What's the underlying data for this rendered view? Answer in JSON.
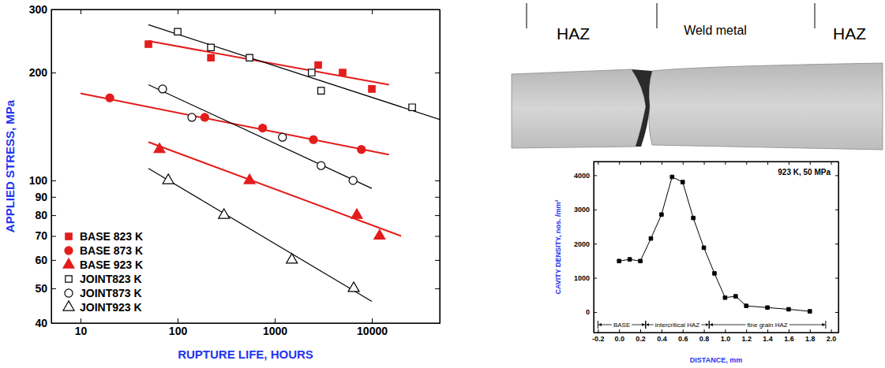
{
  "chart_data": [
    {
      "type": "scatter",
      "log": true,
      "grid": false,
      "legend": "lower left",
      "x_label": "RUPTURE LIFE, HOURS",
      "y_label": "APPLIED STRESS, MPa",
      "xlim": [
        5,
        50000
      ],
      "xticks": [
        10,
        100,
        1000,
        10000
      ],
      "ylim": [
        40,
        300
      ],
      "yticks": [
        40,
        50,
        60,
        70,
        80,
        90,
        100,
        200,
        300
      ],
      "series": [
        {
          "name": "BASE 823 K",
          "color": "#e41c1c",
          "marker": "square",
          "x": [
            50,
            220,
            2800,
            5000,
            10000
          ],
          "values": [
            240,
            220,
            210,
            200,
            180
          ],
          "fit_x": [
            50,
            15000
          ],
          "fit_values": [
            245,
            185
          ]
        },
        {
          "name": "BASE 873 K",
          "color": "#e41c1c",
          "marker": "circle",
          "x": [
            20,
            190,
            750,
            2500,
            7800
          ],
          "values": [
            170,
            150,
            140,
            130,
            122
          ],
          "fit_x": [
            10,
            15000
          ],
          "fit_values": [
            175,
            118
          ]
        },
        {
          "name": "BASE 923 K",
          "color": "#e41c1c",
          "marker": "triangle",
          "x": [
            65,
            550,
            7000,
            12000
          ],
          "values": [
            122,
            100,
            80,
            70
          ],
          "fit_x": [
            50,
            20000
          ],
          "fit_values": [
            128,
            70
          ]
        },
        {
          "name": "JOINT823 K",
          "color": "#000000",
          "marker": "open-square",
          "x": [
            100,
            220,
            550,
            2400,
            3000,
            26000
          ],
          "values": [
            260,
            235,
            220,
            200,
            178,
            160
          ],
          "fit_x": [
            50,
            50000
          ],
          "fit_values": [
            272,
            148
          ]
        },
        {
          "name": "JOINT873 K",
          "color": "#000000",
          "marker": "open-circle",
          "x": [
            70,
            140,
            1200,
            3000,
            6400
          ],
          "values": [
            180,
            150,
            132,
            110,
            100
          ],
          "fit_x": [
            50,
            10000
          ],
          "fit_values": [
            185,
            95
          ]
        },
        {
          "name": "JOINT923 K",
          "color": "#000000",
          "marker": "open-triangle",
          "x": [
            80,
            300,
            1500,
            6500
          ],
          "values": [
            100,
            80,
            60,
            50
          ],
          "fit_x": [
            50,
            10000
          ],
          "fit_values": [
            108,
            46
          ]
        }
      ]
    },
    {
      "type": "line",
      "grid": false,
      "marker": "square",
      "color": "#000000",
      "annotation": "923 K, 50 MPa",
      "x_label": "DISTANCE, mm",
      "y_label": "CAVITY DENSITY, nos. /mm²",
      "xlim": [
        -0.24,
        2.07
      ],
      "xticks": [
        -0.2,
        {
          "value": 0,
          "label": "0.0"
        },
        0.2,
        0.4,
        0.6,
        0.8,
        {
          "value": 1,
          "label": "1.0"
        },
        1.2,
        1.4,
        1.6,
        1.8,
        {
          "value": 2,
          "label": "2.0"
        }
      ],
      "ylim": [
        -600,
        4400
      ],
      "yticks": [
        0,
        1000,
        2000,
        3000,
        4000
      ],
      "x": [
        0.0,
        0.1,
        0.2,
        0.3,
        0.4,
        0.5,
        0.6,
        0.7,
        0.8,
        0.9,
        1.0,
        1.1,
        1.2,
        1.4,
        1.6,
        1.8
      ],
      "values": [
        1490,
        1540,
        1490,
        2150,
        2850,
        3950,
        3800,
        2750,
        1880,
        1130,
        420,
        460,
        180,
        130,
        80,
        20
      ],
      "regions": [
        {
          "label": "BASE",
          "from": -0.2,
          "to": 0.25
        },
        {
          "label": "intercritical HAZ",
          "from": 0.25,
          "to": 0.85
        },
        {
          "label": "fine grain HAZ",
          "from": 0.85,
          "to": 1.95
        }
      ]
    }
  ],
  "macrograph": {
    "labels": [
      "HAZ",
      "Weld metal",
      "HAZ"
    ]
  }
}
